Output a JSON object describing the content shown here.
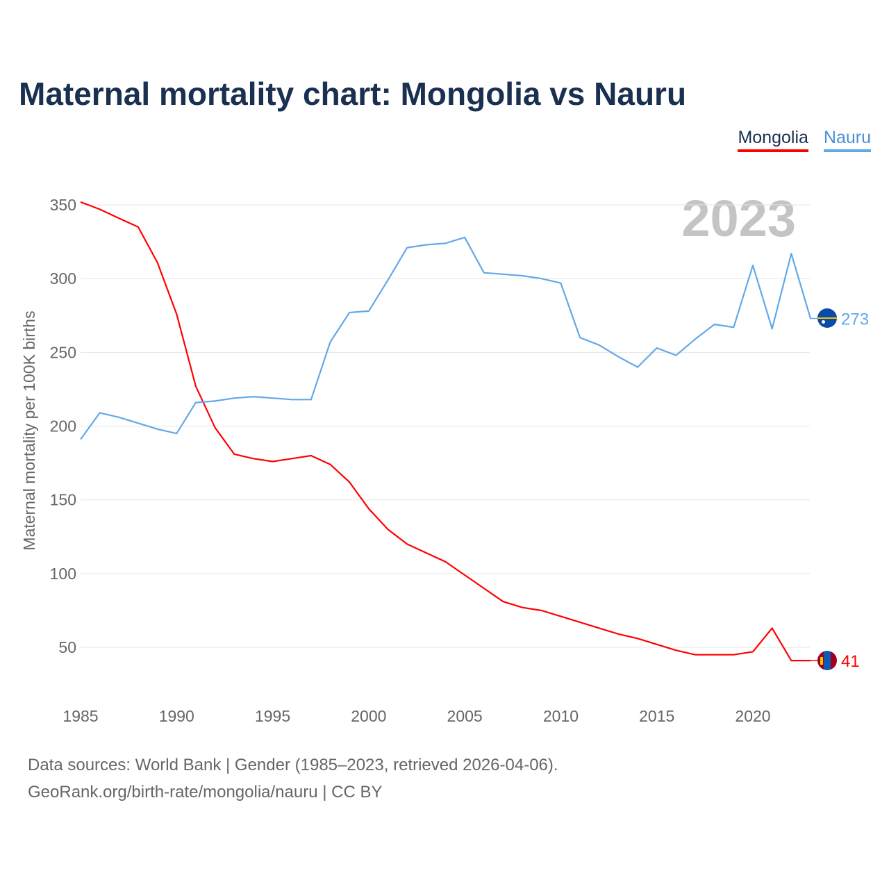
{
  "title": "Maternal mortality chart: Mongolia vs Nauru",
  "footer": {
    "line1": "Data sources: World Bank | Gender (1985–2023, retrieved 2026-04-06).",
    "line2": "GeoRank.org/birth-rate/mongolia/nauru | CC BY"
  },
  "chart_data": {
    "type": "line",
    "title": "Maternal mortality chart: Mongolia vs Nauru",
    "year_label": "2023",
    "xlabel": "",
    "ylabel": "Maternal mortality per 100K births",
    "xlim": [
      1985,
      2023
    ],
    "ylim": [
      20,
      360
    ],
    "x_ticks": [
      "1985",
      "1990",
      "1995",
      "2000",
      "2005",
      "2010",
      "2015",
      "2020"
    ],
    "y_ticks": [
      "50",
      "100",
      "150",
      "200",
      "250",
      "300",
      "350"
    ],
    "grid": true,
    "legend_placement": "top-right",
    "x": [
      1985,
      1986,
      1987,
      1988,
      1989,
      1990,
      1991,
      1992,
      1993,
      1994,
      1995,
      1996,
      1997,
      1998,
      1999,
      2000,
      2001,
      2002,
      2003,
      2004,
      2005,
      2006,
      2007,
      2008,
      2009,
      2010,
      2011,
      2012,
      2013,
      2014,
      2015,
      2016,
      2017,
      2018,
      2019,
      2020,
      2021,
      2022,
      2023
    ],
    "series": [
      {
        "name": "Mongolia",
        "color": "#ff0000",
        "end_label": "41",
        "values": [
          352,
          347,
          341,
          335,
          311,
          276,
          227,
          199,
          181,
          178,
          176,
          178,
          180,
          174,
          162,
          144,
          130,
          120,
          114,
          108,
          99,
          90,
          81,
          77,
          75,
          71,
          67,
          63,
          59,
          56,
          52,
          48,
          45,
          45,
          45,
          47,
          63,
          41,
          41
        ]
      },
      {
        "name": "Nauru",
        "color": "#62a8e8",
        "end_label": "273",
        "values": [
          191,
          209,
          206,
          202,
          198,
          195,
          216,
          217,
          219,
          220,
          219,
          218,
          218,
          257,
          277,
          278,
          299,
          321,
          323,
          324,
          328,
          304,
          303,
          302,
          300,
          297,
          260,
          255,
          247,
          240,
          253,
          248,
          259,
          269,
          267,
          309,
          266,
          317,
          273
        ]
      }
    ]
  }
}
